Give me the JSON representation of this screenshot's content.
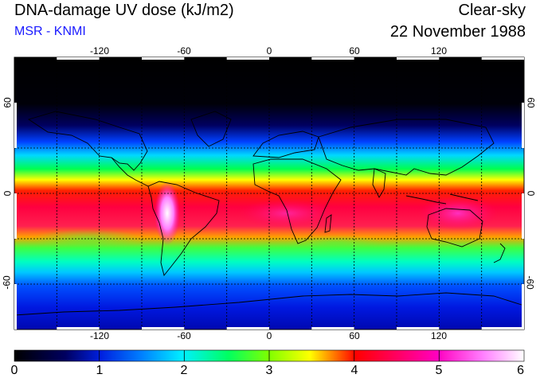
{
  "header": {
    "title": "DNA-damage UV dose (kJ/m2)",
    "source": "MSR - KNMI",
    "sky_condition": "Clear-sky",
    "date": "22 November 1988"
  },
  "map": {
    "lon_ticks": [
      "-120",
      "-60",
      "0",
      "60",
      "120"
    ],
    "lat_ticks_left": [
      "60",
      "0",
      "-60"
    ],
    "lat_ticks_right": [
      "60",
      "0",
      "-60"
    ]
  },
  "colorbar": {
    "min": 0,
    "max": 6,
    "labels": [
      "0",
      "1",
      "2",
      "3",
      "4",
      "5",
      "6"
    ],
    "colors": [
      "#000000",
      "#000090",
      "#0050ff",
      "#00e0ff",
      "#00ff40",
      "#ffff00",
      "#ff0000",
      "#ff0080",
      "#ff40ff",
      "#ffffff"
    ]
  },
  "colors": {
    "title": "#000000",
    "source": "#1a1aff"
  }
}
